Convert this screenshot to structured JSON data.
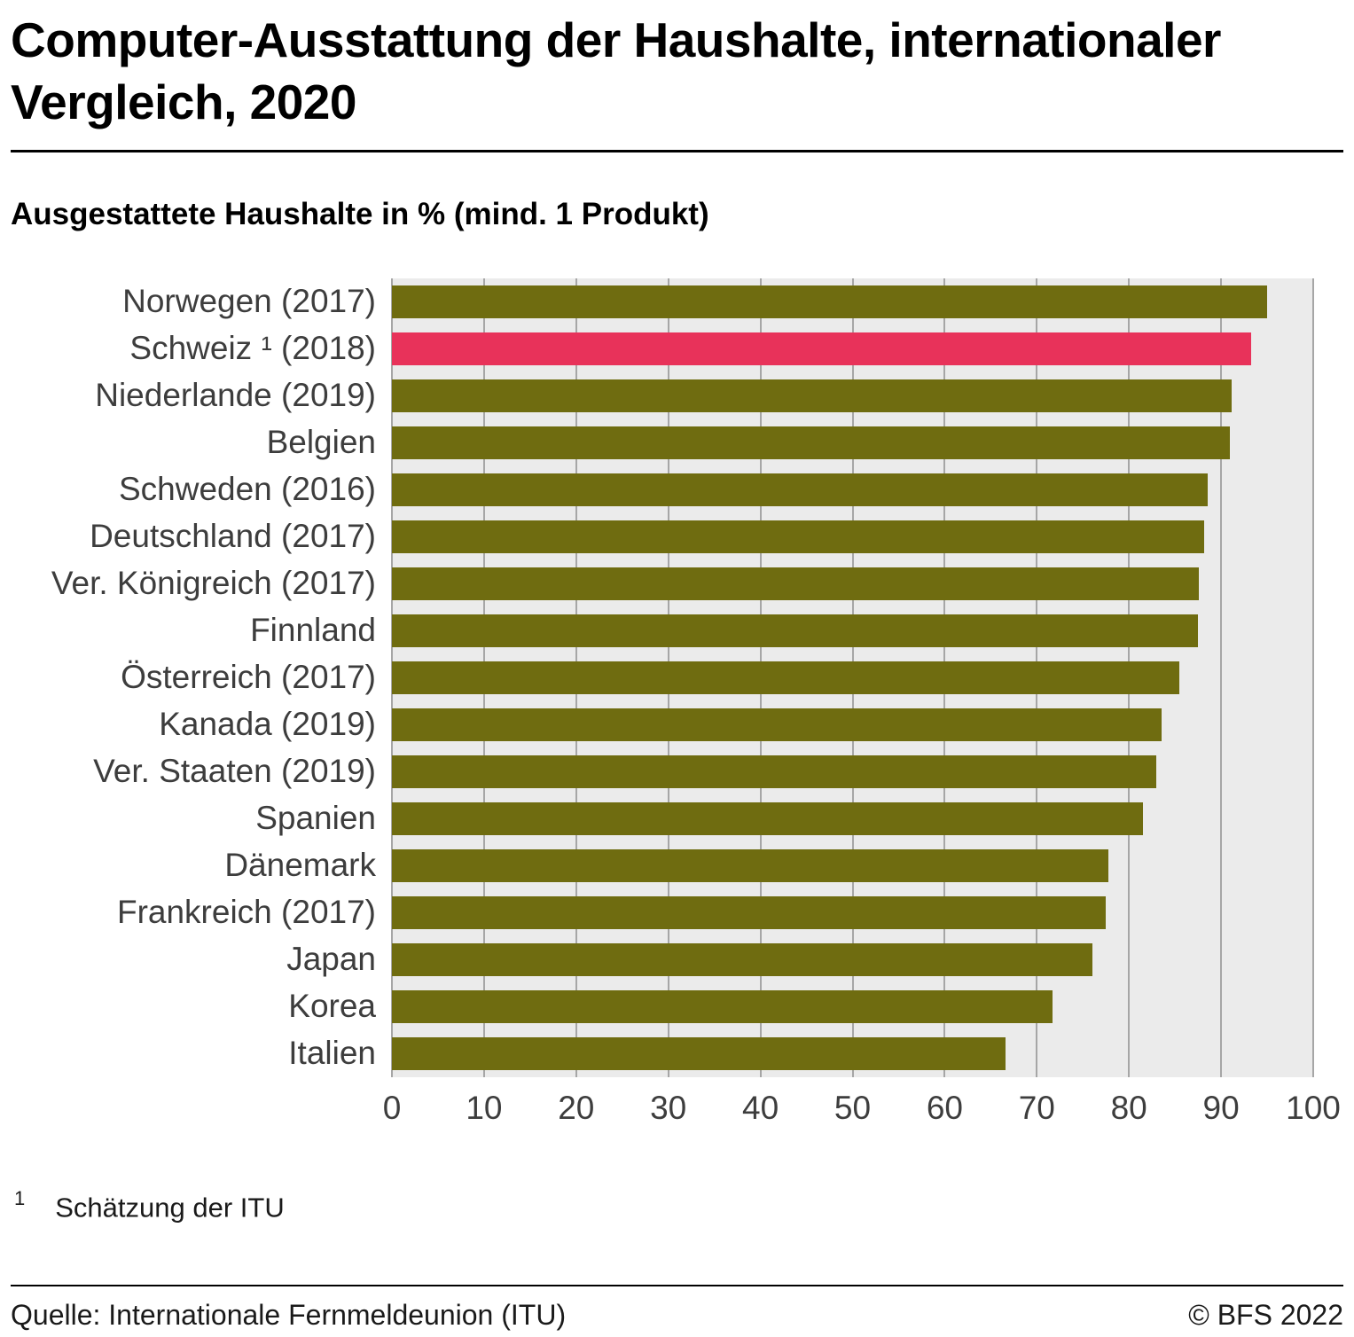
{
  "header": {
    "title": "Computer-Ausstattung der Haushalte, internationaler Vergleich, 2020",
    "subtitle": "Ausgestattete Haushalte in % (mind. 1 Produkt)"
  },
  "chart_data": {
    "type": "bar",
    "orientation": "horizontal",
    "title": "Computer-Ausstattung der Haushalte, internationaler Vergleich, 2020",
    "subtitle": "Ausgestattete Haushalte in % (mind. 1 Produkt)",
    "categories": [
      "Norwegen (2017)",
      "Schweiz ¹ (2018)",
      "Niederlande (2019)",
      "Belgien",
      "Schweden (2016)",
      "Deutschland (2017)",
      "Ver. Königreich (2017)",
      "Finnland",
      "Österreich (2017)",
      "Kanada (2019)",
      "Ver. Staaten (2019)",
      "Spanien",
      "Dänemark",
      "Frankreich (2017)",
      "Japan",
      "Korea",
      "Italien"
    ],
    "values": [
      95.0,
      93.3,
      91.1,
      91.0,
      88.5,
      88.2,
      87.6,
      87.5,
      85.5,
      83.5,
      83.0,
      81.5,
      77.8,
      77.5,
      76.0,
      71.7,
      66.6
    ],
    "highlight_index": 1,
    "xlabel": "",
    "ylabel": "",
    "xlim": [
      0,
      100
    ],
    "x_ticks": [
      0,
      10,
      20,
      30,
      40,
      50,
      60,
      70,
      80,
      90,
      100
    ],
    "grid": true,
    "legend": "none",
    "bar_color": "#6f6c10",
    "highlight_color": "#e8325a",
    "plot_bg": "#ebebeb",
    "grid_color": "#a6a6a6"
  },
  "footnote": {
    "marker": "1",
    "text": "Schätzung der ITU"
  },
  "footer": {
    "source": "Quelle: Internationale Fernmeldeunion (ITU)",
    "copyright": "© BFS 2022"
  }
}
